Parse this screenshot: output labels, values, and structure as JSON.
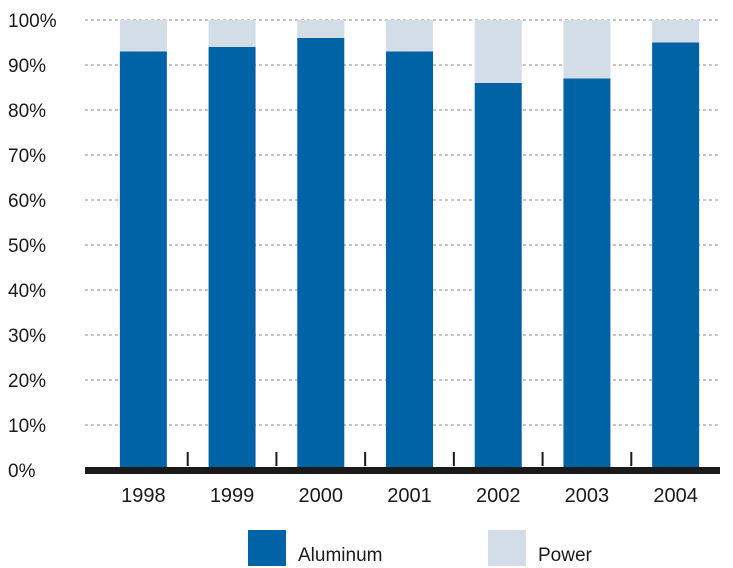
{
  "colors": {
    "aluminum": "#0063a6",
    "power": "#d3dde7",
    "axis": "#1a1a1a",
    "grid": "#888888"
  },
  "chart_data": {
    "type": "bar",
    "stacked": true,
    "categories": [
      "1998",
      "1999",
      "2000",
      "2001",
      "2002",
      "2003",
      "2004"
    ],
    "series": [
      {
        "name": "Aluminum",
        "values": [
          93,
          94,
          96,
          93,
          86,
          87,
          95
        ]
      },
      {
        "name": "Power",
        "values": [
          7,
          6,
          4,
          7,
          14,
          13,
          5
        ]
      }
    ],
    "ylim": [
      0,
      100
    ],
    "yticks": [
      "0%",
      "10%",
      "20%",
      "30%",
      "40%",
      "50%",
      "60%",
      "70%",
      "80%",
      "90%",
      "100%"
    ],
    "grid": true,
    "legend": "bottom",
    "title": "",
    "xlabel": "",
    "ylabel": ""
  }
}
